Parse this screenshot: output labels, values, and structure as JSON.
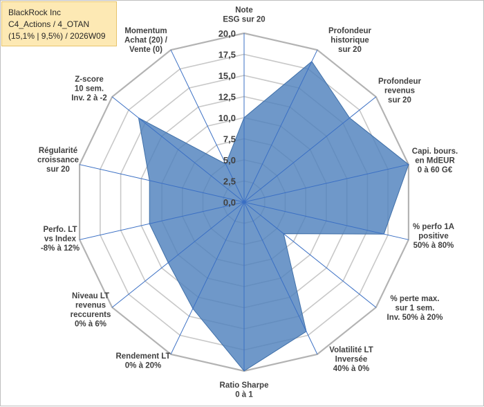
{
  "title_box": {
    "line1": "BlackRock Inc",
    "line2": "C4_Actions / 4_OTAN",
    "line3": "(15,1% | 9,5%) / 2026W09"
  },
  "chart_data": {
    "type": "radar",
    "rmin": 0,
    "rmax": 20,
    "tick_values": [
      0,
      2.5,
      5,
      7.5,
      10,
      12.5,
      15,
      17.5,
      20
    ],
    "tick_labels": [
      "0,0",
      "2,5",
      "5,0",
      "7,5",
      "10,0",
      "12,5",
      "15,0",
      "17,5",
      "20,0"
    ],
    "categories": [
      [
        "Note",
        "ESG sur 20"
      ],
      [
        "Profondeur",
        "historique",
        "sur 20"
      ],
      [
        "Profondeur",
        "revenus",
        "sur 20"
      ],
      [
        "Capi. bours.",
        "en MdEUR",
        "0 à 60 G€"
      ],
      [
        "% perfo 1A",
        "positive",
        "50% à 80%"
      ],
      [
        "% perte max.",
        "sur 1 sem.",
        "Inv. 50% à 20%"
      ],
      [
        "Volatilité LT",
        "Inversée",
        "40% à 0%"
      ],
      [
        "Ratio Sharpe",
        "0 à 1"
      ],
      [
        "Rendement LT",
        "0% à 20%"
      ],
      [
        "Niveau LT",
        "revenus",
        "reccurents",
        "0% à 6%"
      ],
      [
        "Perfo. LT",
        "vs Index",
        "-8% à 12%"
      ],
      [
        "Régularité",
        "croissance",
        "sur 20"
      ],
      [
        "Z-score",
        "10 sem.",
        "Inv. 2 à -2"
      ],
      [
        "Momentum",
        "Achat (20) /",
        "Vente (0)"
      ]
    ],
    "series": [
      {
        "name": "BlackRock Inc",
        "color": "#4f81bd",
        "values": [
          10,
          18.5,
          16,
          20,
          17,
          6,
          17,
          20,
          14,
          11.5,
          11.5,
          11.5,
          16,
          5
        ]
      }
    ]
  }
}
